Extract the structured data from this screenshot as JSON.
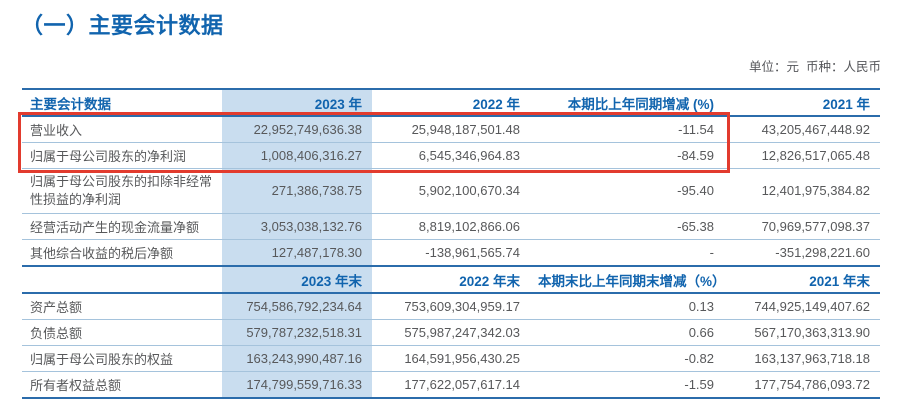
{
  "header": {
    "title": "（一）主要会计数据",
    "unit_note": "单位：元  币种：人民币"
  },
  "table": {
    "section1": {
      "columns": [
        "主要会计数据",
        "2023 年",
        "2022 年",
        "本期比上年同期增减 (%)",
        "2021 年"
      ],
      "rows": [
        {
          "label": "营业收入",
          "v2023": "22,952,749,636.38",
          "v2022": "25,948,187,501.48",
          "pct": "-11.54",
          "v2021": "43,205,467,448.92"
        },
        {
          "label": "归属于母公司股东的净利润",
          "v2023": "1,008,406,316.27",
          "v2022": "6,545,346,964.83",
          "pct": "-84.59",
          "v2021": "12,826,517,065.48"
        },
        {
          "label": "归属于母公司股东的扣除非经常性损益的净利润",
          "v2023": "271,386,738.75",
          "v2022": "5,902,100,670.34",
          "pct": "-95.40",
          "v2021": "12,401,975,384.82"
        },
        {
          "label": "经营活动产生的现金流量净额",
          "v2023": "3,053,038,132.76",
          "v2022": "8,819,102,866.06",
          "pct": "-65.38",
          "v2021": "70,969,577,098.37"
        },
        {
          "label": "其他综合收益的税后净额",
          "v2023": "127,487,178.30",
          "v2022": "-138,961,565.74",
          "pct": "-",
          "v2021": "-351,298,221.60"
        }
      ]
    },
    "section2": {
      "columns": [
        "",
        "2023 年末",
        "2022 年末",
        "本期末比上年同期末增减（%）",
        "2021 年末"
      ],
      "rows": [
        {
          "label": "资产总额",
          "v2023": "754,586,792,234.64",
          "v2022": "753,609,304,959.17",
          "pct": "0.13",
          "v2021": "744,925,149,407.62"
        },
        {
          "label": "负债总额",
          "v2023": "579,787,232,518.31",
          "v2022": "575,987,247,342.03",
          "pct": "0.66",
          "v2021": "567,170,363,313.90"
        },
        {
          "label": "归属于母公司股东的权益",
          "v2023": "163,243,990,487.16",
          "v2022": "164,591,956,430.25",
          "pct": "-0.82",
          "v2021": "163,137,963,718.18"
        },
        {
          "label": "所有者权益总额",
          "v2023": "174,799,559,716.33",
          "v2022": "177,622,057,617.14",
          "pct": "-1.59",
          "v2021": "177,754,786,093.72"
        }
      ]
    }
  },
  "colors": {
    "accent_blue": "#1164ae",
    "band_blue": "#c9ddef",
    "highlight_red": "#e23b2e",
    "line_dark": "#2b6cab",
    "line_light": "#a5c3dc"
  }
}
